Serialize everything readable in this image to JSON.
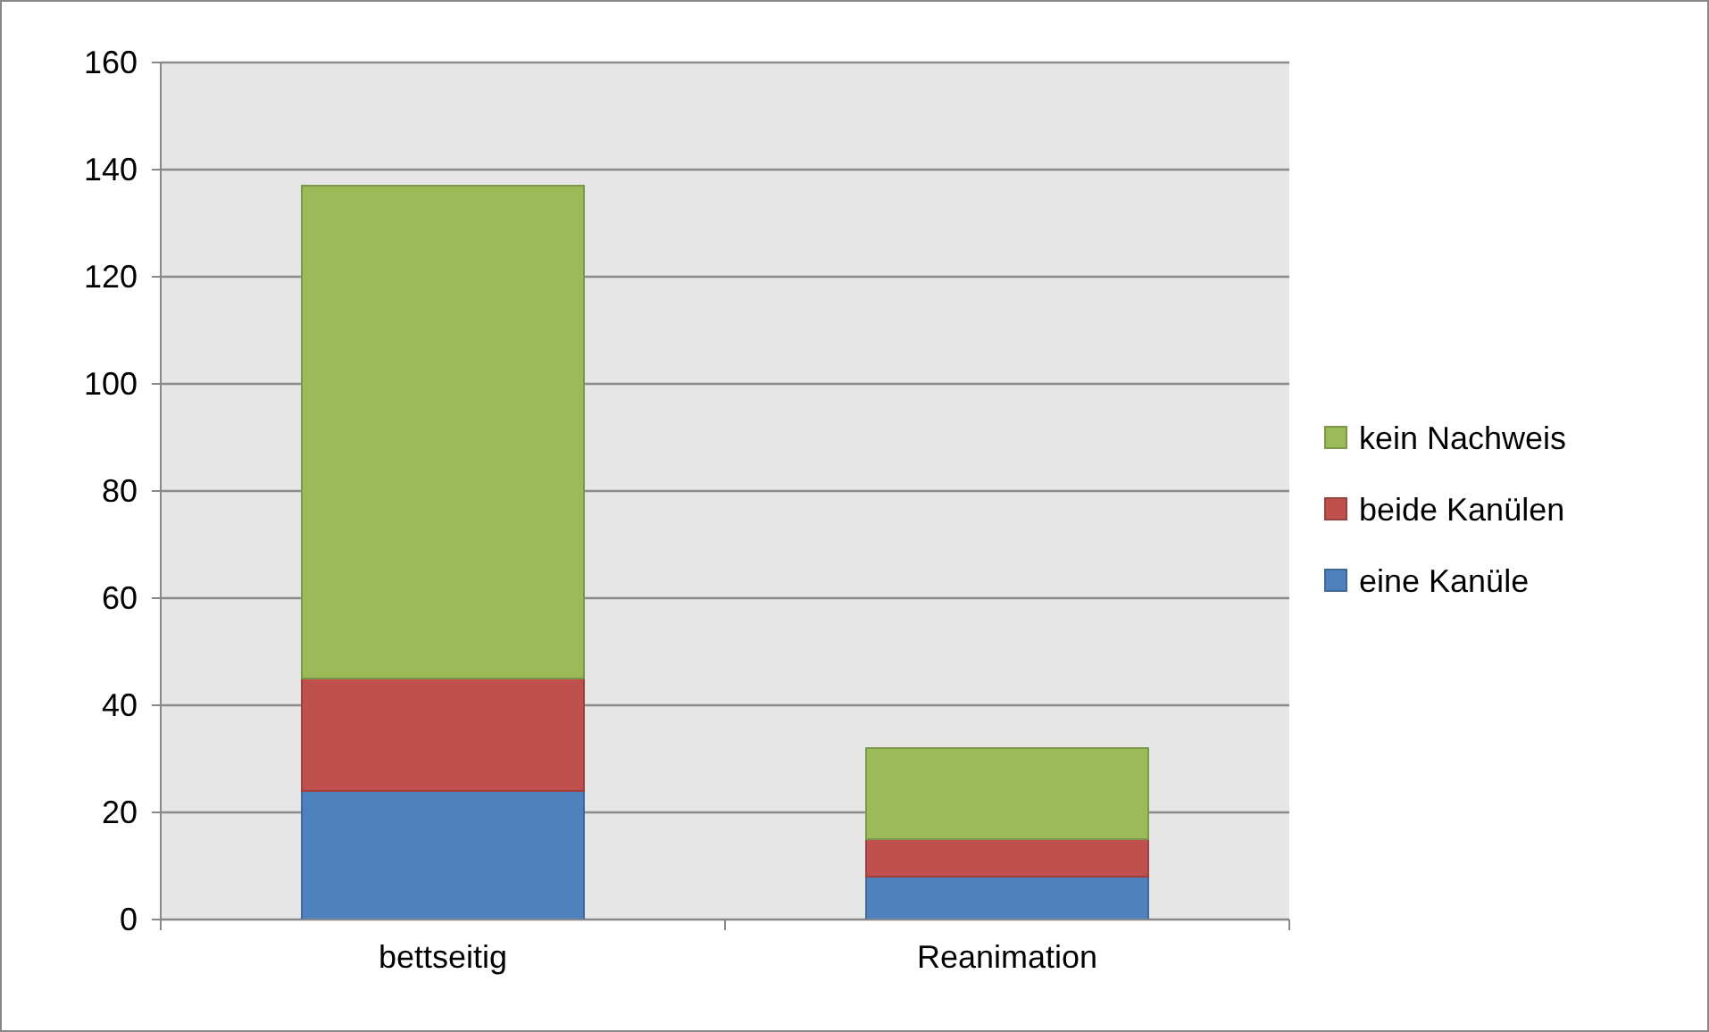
{
  "chart_data": {
    "type": "bar",
    "stacked": true,
    "categories": [
      "bettseitig",
      "Reanimation"
    ],
    "series": [
      {
        "name": "eine Kanüle",
        "color": "#4f81bd",
        "values": [
          24,
          8
        ]
      },
      {
        "name": "beide Kanülen",
        "color": "#c0504d",
        "values": [
          21,
          7
        ]
      },
      {
        "name": "kein Nachweis",
        "color": "#9bbb59",
        "values": [
          92,
          17
        ]
      }
    ],
    "ylim": [
      0,
      160
    ],
    "yticks": [
      0,
      20,
      40,
      60,
      80,
      100,
      120,
      140,
      160
    ],
    "grid": "y",
    "legend": "right"
  }
}
